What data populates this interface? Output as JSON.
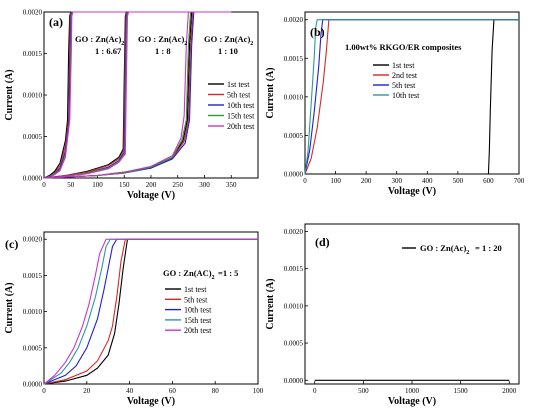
{
  "chart_data": [
    {
      "type": "line",
      "panel_label": "(a)",
      "xlabel": "Voltage (V)",
      "ylabel": "Current (A)",
      "xlim": [
        0,
        400
      ],
      "ylim": [
        0,
        0.002
      ],
      "xticks": [
        0,
        50,
        100,
        150,
        200,
        250,
        300,
        350
      ],
      "yticks": [
        0,
        0.0005,
        0.001,
        0.0015,
        0.002
      ],
      "ytick_labels": [
        "0.0000",
        "0.0005",
        "0.0010",
        "0.0015",
        "0.0020"
      ],
      "annotations": [
        {
          "text": "GO : Zn(Ac)",
          "sub": "2",
          "ratio": "1 : 6.67"
        },
        {
          "text": "GO : Zn(Ac)",
          "sub": "2",
          "ratio": "1 : 8"
        },
        {
          "text": "GO : Zn(Ac)",
          "sub": "2",
          "ratio": "1 : 10"
        }
      ],
      "legend": [
        "1st test",
        "5th test",
        "10th test",
        "15th test",
        "20th test"
      ],
      "series": [
        {
          "name": "1st test",
          "color": "#000000",
          "x": [
            0,
            10,
            20,
            30,
            40,
            44,
            46,
            48,
            50,
            200
          ],
          "y": [
            0,
            3e-05,
            8e-05,
            0.00018,
            0.00045,
            0.0007,
            0.0015,
            0.00195,
            0.002,
            0.002
          ]
        },
        {
          "name": "5th test",
          "color": "#d62828",
          "x": [
            0,
            10,
            20,
            30,
            40,
            46,
            48,
            49,
            51,
            200
          ],
          "y": [
            0,
            2e-05,
            6e-05,
            0.00015,
            0.00038,
            0.0007,
            0.0015,
            0.00195,
            0.002,
            0.002
          ]
        },
        {
          "name": "10th test",
          "color": "#1f1fd6",
          "x": [
            0,
            10,
            20,
            30,
            40,
            47,
            49,
            50,
            52,
            200
          ],
          "y": [
            0,
            2e-05,
            5e-05,
            0.00012,
            0.00032,
            0.0007,
            0.0015,
            0.00195,
            0.002,
            0.002
          ]
        },
        {
          "name": "15th test",
          "color": "#2a9a2a",
          "x": [
            0,
            10,
            20,
            30,
            40,
            48,
            50,
            51,
            53,
            200
          ],
          "y": [
            0,
            2e-05,
            5e-05,
            0.0001,
            0.00028,
            0.0007,
            0.0015,
            0.00195,
            0.002,
            0.002
          ]
        },
        {
          "name": "20th test",
          "color": "#cc33cc",
          "x": [
            0,
            10,
            20,
            30,
            40,
            48,
            51,
            52,
            54,
            200
          ],
          "y": [
            0,
            1e-05,
            4e-05,
            9e-05,
            0.00025,
            0.0007,
            0.0015,
            0.00195,
            0.002,
            0.002
          ]
        },
        {
          "name": "1st test",
          "color": "#000000",
          "x": [
            0,
            40,
            80,
            120,
            140,
            148,
            150,
            152,
            154,
            300
          ],
          "y": [
            0,
            3e-05,
            8e-05,
            0.00016,
            0.00025,
            0.00035,
            0.0012,
            0.00195,
            0.002,
            0.002
          ]
        },
        {
          "name": "5th test",
          "color": "#d62828",
          "x": [
            0,
            40,
            80,
            120,
            140,
            149,
            151,
            153,
            155,
            300
          ],
          "y": [
            0,
            3e-05,
            7e-05,
            0.00015,
            0.00023,
            0.00033,
            0.0012,
            0.00195,
            0.002,
            0.002
          ]
        },
        {
          "name": "10th test",
          "color": "#1f1fd6",
          "x": [
            0,
            40,
            80,
            120,
            140,
            150,
            152,
            154,
            156,
            300
          ],
          "y": [
            0,
            2e-05,
            6e-05,
            0.00013,
            0.00021,
            0.00031,
            0.0012,
            0.00195,
            0.002,
            0.002
          ]
        },
        {
          "name": "15th test",
          "color": "#2a9a2a",
          "x": [
            0,
            40,
            80,
            120,
            140,
            151,
            153,
            155,
            157,
            300
          ],
          "y": [
            0,
            2e-05,
            6e-05,
            0.00012,
            0.0002,
            0.0003,
            0.0012,
            0.00195,
            0.002,
            0.002
          ]
        },
        {
          "name": "20th test",
          "color": "#cc33cc",
          "x": [
            0,
            40,
            80,
            120,
            140,
            152,
            154,
            156,
            158,
            300
          ],
          "y": [
            0,
            2e-05,
            5e-05,
            0.00011,
            0.00019,
            0.00029,
            0.0012,
            0.00195,
            0.002,
            0.002
          ]
        },
        {
          "name": "1st test",
          "color": "#000000",
          "x": [
            0,
            100,
            150,
            200,
            240,
            260,
            268,
            272,
            276,
            300
          ],
          "y": [
            0,
            3e-05,
            7e-05,
            0.00013,
            0.00025,
            0.00045,
            0.0007,
            0.0016,
            0.002,
            0.002
          ]
        },
        {
          "name": "5th test",
          "color": "#d62828",
          "x": [
            0,
            100,
            150,
            200,
            240,
            262,
            270,
            274,
            278,
            300
          ],
          "y": [
            0,
            3e-05,
            7e-05,
            0.00012,
            0.00024,
            0.00044,
            0.0007,
            0.0016,
            0.002,
            0.002
          ]
        },
        {
          "name": "10th test",
          "color": "#1f1fd6",
          "x": [
            0,
            100,
            150,
            200,
            240,
            264,
            272,
            276,
            280,
            300
          ],
          "y": [
            0,
            3e-05,
            6e-05,
            0.00012,
            0.00023,
            0.00042,
            0.0007,
            0.0016,
            0.002,
            0.002
          ]
        },
        {
          "name": "15th test",
          "color": "#2a9a2a",
          "x": [
            0,
            100,
            150,
            200,
            240,
            258,
            266,
            270,
            274,
            300
          ],
          "y": [
            0,
            3e-05,
            6e-05,
            0.00013,
            0.00025,
            0.00046,
            0.0007,
            0.0016,
            0.002,
            0.002
          ]
        },
        {
          "name": "20th test",
          "color": "#cc33cc",
          "x": [
            0,
            100,
            150,
            200,
            240,
            256,
            262,
            266,
            270,
            350
          ],
          "y": [
            0,
            3e-05,
            7e-05,
            0.00014,
            0.00027,
            0.00048,
            0.00075,
            0.0016,
            0.002,
            0.002
          ]
        }
      ]
    },
    {
      "type": "line",
      "panel_label": "(b)",
      "xlabel": "Voltage (V)",
      "ylabel": "Current (A)",
      "xlim": [
        0,
        700
      ],
      "ylim": [
        0,
        0.0021
      ],
      "xticks": [
        0,
        100,
        200,
        300,
        400,
        500,
        600,
        700
      ],
      "yticks": [
        0,
        0.0005,
        0.001,
        0.0015,
        0.002
      ],
      "ytick_labels": [
        "0.0000",
        "0.0005",
        "0.0010",
        "0.0015",
        "0.0020"
      ],
      "annotation": "1.00wt% RKGO/ER composites",
      "legend": [
        "1st test",
        "2nd test",
        "5th test",
        "10th test"
      ],
      "series": [
        {
          "name": "1st test",
          "color": "#000000",
          "x": [
            0,
            600,
            603,
            606,
            612,
            618,
            700
          ],
          "y": [
            0,
            0,
            0.0003,
            0.0008,
            0.0016,
            0.002,
            0.002
          ]
        },
        {
          "name": "2nd test",
          "color": "#d62828",
          "x": [
            0,
            20,
            40,
            60,
            70,
            78,
            700
          ],
          "y": [
            0,
            0.0002,
            0.0006,
            0.0012,
            0.0016,
            0.002,
            0.002
          ]
        },
        {
          "name": "5th test",
          "color": "#1f1fd6",
          "x": [
            0,
            15,
            30,
            45,
            52,
            58,
            700
          ],
          "y": [
            0,
            0.0003,
            0.0008,
            0.0014,
            0.0018,
            0.002,
            0.002
          ]
        },
        {
          "name": "10th test",
          "color": "#2a9a9a",
          "x": [
            0,
            10,
            20,
            30,
            35,
            40,
            700
          ],
          "y": [
            0,
            0.0003,
            0.0009,
            0.0015,
            0.0019,
            0.002,
            0.002
          ]
        }
      ]
    },
    {
      "type": "line",
      "panel_label": "(c)",
      "xlabel": "Voltage (V)",
      "ylabel": "Current (A)",
      "xlim": [
        0,
        100
      ],
      "ylim": [
        0,
        0.0021
      ],
      "xticks": [
        0,
        20,
        40,
        60,
        80,
        100
      ],
      "yticks": [
        0,
        0.0005,
        0.001,
        0.0015,
        0.002
      ],
      "ytick_labels": [
        "0.0000",
        "0.0005",
        "0.0010",
        "0.0015",
        "0.0020"
      ],
      "annotation_text": "GO : Zn(AC)",
      "annotation_sub": "2",
      "annotation_ratio": "=1 : 5",
      "legend": [
        "1st test",
        "5th test",
        "10th test",
        "15th test",
        "20th test"
      ],
      "series": [
        {
          "name": "1st test",
          "color": "#000000",
          "x": [
            0,
            10,
            20,
            25,
            30,
            33,
            35,
            37,
            39,
            100
          ],
          "y": [
            0,
            4e-05,
            0.00012,
            0.00022,
            0.0004,
            0.0007,
            0.0011,
            0.0016,
            0.002,
            0.002
          ]
        },
        {
          "name": "5th test",
          "color": "#d62828",
          "x": [
            0,
            10,
            20,
            25,
            30,
            32,
            34,
            36,
            38,
            100
          ],
          "y": [
            0,
            6e-05,
            0.00018,
            0.00032,
            0.0006,
            0.0008,
            0.0012,
            0.0017,
            0.002,
            0.002
          ]
        },
        {
          "name": "10th test",
          "color": "#1f1fd6",
          "x": [
            0,
            10,
            15,
            20,
            25,
            28,
            30,
            32,
            34,
            100
          ],
          "y": [
            0,
            0.00012,
            0.00025,
            0.0005,
            0.0009,
            0.0013,
            0.0016,
            0.0019,
            0.002,
            0.002
          ]
        },
        {
          "name": "15th test",
          "color": "#2a9a9a",
          "x": [
            0,
            8,
            12,
            16,
            20,
            24,
            27,
            29,
            31,
            100
          ],
          "y": [
            0,
            0.00015,
            0.0003,
            0.0005,
            0.0008,
            0.0012,
            0.0016,
            0.0019,
            0.002,
            0.002
          ]
        },
        {
          "name": "20th test",
          "color": "#cc33cc",
          "x": [
            0,
            5,
            10,
            14,
            18,
            21,
            24,
            26,
            29,
            100
          ],
          "y": [
            0,
            0.00012,
            0.0003,
            0.0005,
            0.0008,
            0.0011,
            0.0015,
            0.0018,
            0.002,
            0.002
          ]
        }
      ]
    },
    {
      "type": "line",
      "panel_label": "(d)",
      "xlabel": "Voltage (V)",
      "ylabel": "Current (A)",
      "xlim": [
        -100,
        2100
      ],
      "ylim": [
        -5e-05,
        0.0021
      ],
      "xticks": [
        0,
        500,
        1000,
        1500,
        2000
      ],
      "yticks": [
        0,
        0.0005,
        0.001,
        0.0015,
        0.002
      ],
      "ytick_labels": [
        "0.0000",
        "0.0005",
        "0.0010",
        "0.0015",
        "0.0020"
      ],
      "legend_text": "GO : Zn(Ac)",
      "legend_sub": "2",
      "legend_ratio": "= 1 : 20",
      "series": [
        {
          "color": "#000000",
          "x": [
            0,
            2000
          ],
          "y": [
            0,
            0
          ]
        }
      ]
    }
  ]
}
